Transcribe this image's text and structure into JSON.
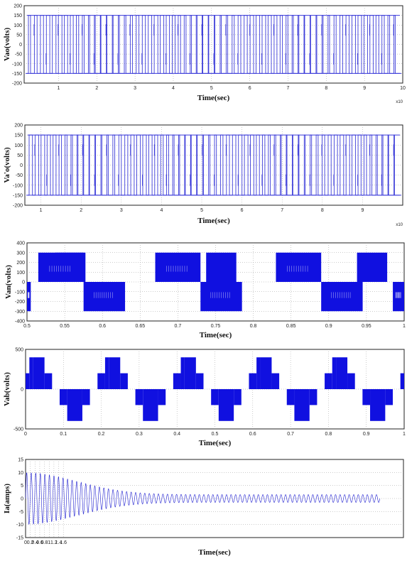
{
  "chart_data": [
    {
      "type": "line",
      "waveform": "pwm",
      "ylabel": "Vao(volts)",
      "xlabel": "Time(sec)",
      "x_multiplier": "x10",
      "xlim": [
        0.1,
        10
      ],
      "ylim": [
        -200,
        200
      ],
      "xticks": [
        "1",
        "2",
        "3",
        "4",
        "5",
        "6",
        "7",
        "8",
        "9",
        "10"
      ],
      "yticks": [
        "200",
        "150",
        "100",
        "50",
        "0",
        "-50",
        "-100",
        "-150",
        "-200"
      ],
      "amplitude": 150,
      "color": "#3b3bd9"
    },
    {
      "type": "line",
      "waveform": "pwm",
      "ylabel": "Va'o(volts)",
      "xlabel": "Time(sec)",
      "x_multiplier": "x10",
      "xlim": [
        0.6,
        10
      ],
      "ylim": [
        -200,
        200
      ],
      "xticks": [
        "1",
        "2",
        "3",
        "4",
        "5",
        "6",
        "7",
        "8",
        "9"
      ],
      "yticks": [
        "200",
        "150",
        "100",
        "50",
        "0",
        "-50",
        "-100",
        "-150",
        "-200"
      ],
      "amplitude": 150,
      "color": "#3b3bd9"
    },
    {
      "type": "line",
      "waveform": "square3level",
      "ylabel": "Van(volts)",
      "xlabel": "Time(sec)",
      "xlim": [
        0.5,
        1
      ],
      "ylim": [
        -400,
        400
      ],
      "xticks": [
        "0.5",
        "0.55",
        "0.6",
        "0.65",
        "0.7",
        "0.75",
        "0.8",
        "0.85",
        "0.9",
        "0.95",
        "1"
      ],
      "yticks": [
        "400",
        "300",
        "200",
        "100",
        "0",
        "-100",
        "-200",
        "-300",
        "-400"
      ],
      "amplitude": 300,
      "period": 0.2,
      "color": "#1010e0"
    },
    {
      "type": "line",
      "waveform": "staircase",
      "ylabel": "Vab(volts)",
      "xlabel": "Time(sec)",
      "xlim": [
        0,
        1
      ],
      "ylim": [
        -500,
        500
      ],
      "xticks": [
        "0",
        "0.1",
        "0.2",
        "0.3",
        "0.4",
        "0.5",
        "0.6",
        "0.7",
        "0.8",
        "0.9",
        "1"
      ],
      "yticks": [
        "500",
        "0",
        "-500"
      ],
      "levels": [
        400,
        200
      ],
      "period": 0.2,
      "color": "#1010e0"
    },
    {
      "type": "line",
      "waveform": "decaying_sine",
      "ylabel": "Ia(amps)",
      "xlabel": "Time(sec)",
      "xlim": [
        0,
        16
      ],
      "ylim": [
        -15,
        15
      ],
      "xticks": [
        "0",
        "0.2",
        "0.4",
        "0.6",
        "0.8",
        "1",
        "1.2",
        "1.4",
        "1.6"
      ],
      "yticks": [
        "15",
        "10",
        "5",
        "0",
        "-5",
        "-10",
        "-15"
      ],
      "initial_amplitude": 10,
      "steady_amplitude": 1.5,
      "end_x": 15,
      "color": "#2020d0"
    }
  ]
}
